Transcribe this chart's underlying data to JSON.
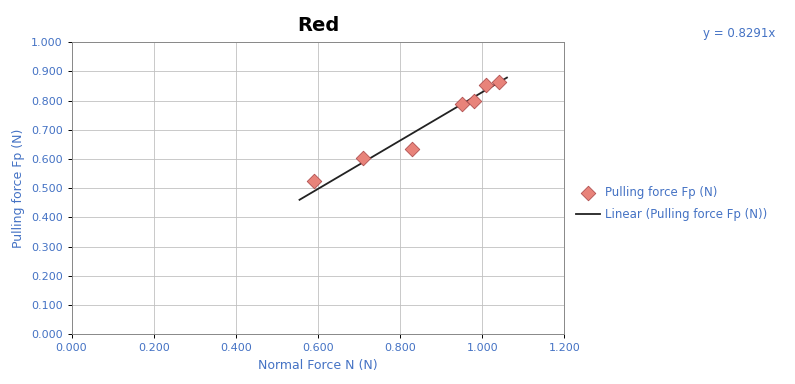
{
  "title": "Red",
  "xlabel": "Normal Force N (N)",
  "ylabel": "Pulling force Fp (N)",
  "x_data": [
    0.59,
    0.71,
    0.83,
    0.95,
    0.98,
    1.01,
    1.04
  ],
  "y_data": [
    0.525,
    0.605,
    0.635,
    0.79,
    0.8,
    0.855,
    0.865
  ],
  "slope": 0.8291,
  "equation_label": "y = 0.8291x",
  "legend_scatter": "Pulling force Fp (N)",
  "legend_line": "Linear (Pulling force Fp (N))",
  "xlim": [
    0.0,
    1.2
  ],
  "ylim": [
    0.0,
    1.0
  ],
  "xticks": [
    0.0,
    0.2,
    0.4,
    0.6,
    0.8,
    1.0,
    1.2
  ],
  "yticks": [
    0.0,
    0.1,
    0.2,
    0.3,
    0.4,
    0.5,
    0.6,
    0.7,
    0.8,
    0.9,
    1.0
  ],
  "line_x_start": 0.555,
  "line_x_end": 1.06,
  "scatter_color": "#E8837A",
  "scatter_edge_color": "#B05050",
  "line_color": "#222222",
  "title_color": "#000000",
  "axis_label_color": "#4472C4",
  "tick_label_color": "#4472C4",
  "equation_color": "#4472C4",
  "legend_text_color": "#4472C4",
  "grid_color": "#C0C0C0",
  "background_color": "#FFFFFF",
  "title_fontsize": 14,
  "axis_label_fontsize": 9,
  "tick_fontsize": 8,
  "legend_fontsize": 8.5,
  "equation_fontsize": 8.5
}
